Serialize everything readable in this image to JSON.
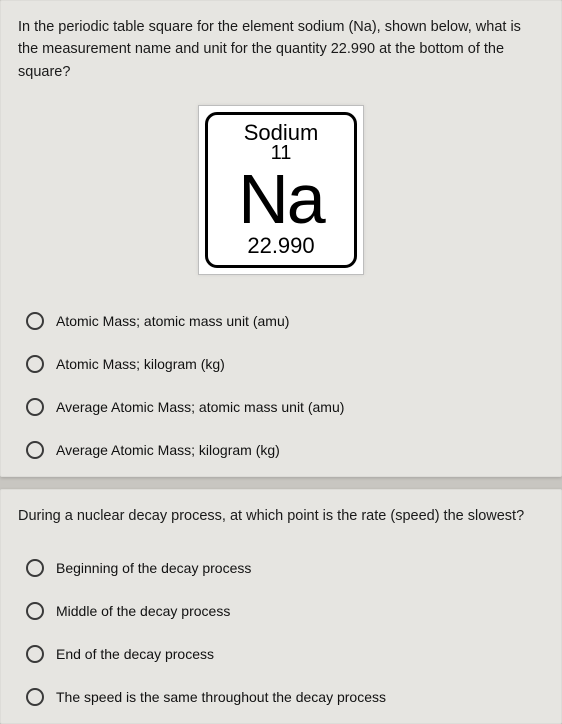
{
  "colors": {
    "page_bg": "#c8c6c1",
    "card_bg": "#e6e5e1",
    "tile_border": "#000000",
    "tile_bg": "#ffffff",
    "radio_border": "#3a3a3a",
    "text": "#1a1a1a"
  },
  "question1": {
    "prompt": "In the periodic table square for the element sodium (Na), shown below, what is the measurement name and unit for the quantity 22.990 at the bottom of the square?",
    "element": {
      "name": "Sodium",
      "atomic_number": "11",
      "symbol": "Na",
      "mass": "22.990"
    },
    "options": [
      "Atomic Mass; atomic mass unit (amu)",
      "Atomic Mass; kilogram (kg)",
      "Average Atomic Mass; atomic mass unit (amu)",
      "Average Atomic Mass; kilogram (kg)"
    ]
  },
  "question2": {
    "prompt": "During a nuclear decay process, at which point is the rate (speed) the slowest?",
    "options": [
      "Beginning of the decay process",
      "Middle of the decay process",
      "End of the decay process",
      "The speed is the same throughout the decay process"
    ]
  }
}
